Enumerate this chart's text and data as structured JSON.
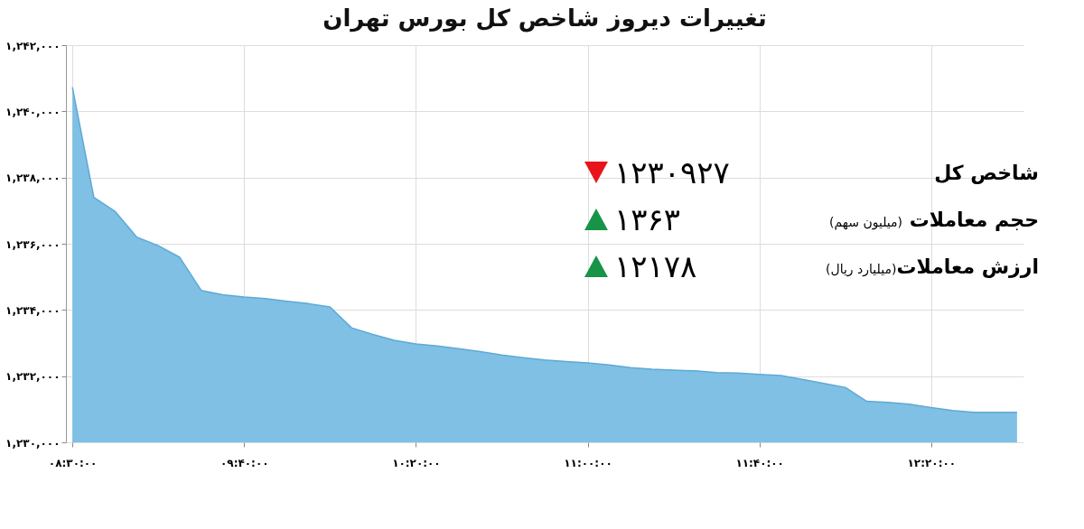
{
  "chart_data": {
    "type": "area",
    "title": "تغییرات دیروز شاخص کل بورس تهران",
    "categories": [
      "۰۸:۳۰:۰۰",
      null,
      null,
      null,
      null,
      null,
      null,
      null,
      "۰۹:۴۰:۰۰",
      null,
      null,
      null,
      null,
      null,
      null,
      null,
      "۱۰:۲۰:۰۰",
      null,
      null,
      null,
      null,
      null,
      null,
      null,
      "۱۱:۰۰:۰۰",
      null,
      null,
      null,
      null,
      null,
      null,
      null,
      "۱۱:۴۰:۰۰",
      null,
      null,
      null,
      null,
      null,
      null,
      null,
      "۱۲:۲۰:۰۰",
      null,
      null,
      null,
      null
    ],
    "values": [
      1240730,
      1237400,
      1236970,
      1236200,
      1235940,
      1235590,
      1234590,
      1234460,
      1234390,
      1234340,
      1234260,
      1234190,
      1234090,
      1233460,
      1233260,
      1233080,
      1232970,
      1232910,
      1232830,
      1232740,
      1232640,
      1232560,
      1232490,
      1232440,
      1232400,
      1232340,
      1232260,
      1232210,
      1232180,
      1232160,
      1232110,
      1232090,
      1232050,
      1232020,
      1231900,
      1231780,
      1231660,
      1231240,
      1231210,
      1231150,
      1231050,
      1230960,
      1230910,
      1230910,
      1230910
    ],
    "color": "#7fc0e4",
    "ylim": [
      1230000,
      1242000
    ],
    "yticks": [
      {
        "value": 1230000,
        "label": "۱,۲۳۰,۰۰۰"
      },
      {
        "value": 1232000,
        "label": "۱,۲۳۲,۰۰۰"
      },
      {
        "value": 1234000,
        "label": "۱,۲۳۴,۰۰۰"
      },
      {
        "value": 1236000,
        "label": "۱,۲۳۶,۰۰۰"
      },
      {
        "value": 1238000,
        "label": "۱,۲۳۸,۰۰۰"
      },
      {
        "value": 1240000,
        "label": "۱,۲۴۰,۰۰۰"
      },
      {
        "value": 1242000,
        "label": "۱,۲۴۲,۰۰۰"
      }
    ],
    "grid": true,
    "annotations": [
      "شاخص کل",
      "۱۲۳۰۹۲۷",
      "حجم معاملات (میلیون سهم)",
      "۱۳۶۳",
      "ارزش معاملات(میلیارد ریال)",
      "۱۲۱۷۸"
    ]
  }
}
